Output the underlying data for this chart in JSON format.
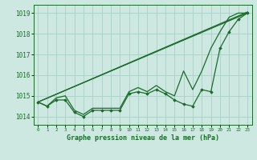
{
  "title": "Graphe pression niveau de la mer (hPa)",
  "background_color": "#cce8e0",
  "grid_color": "#aad0c8",
  "line_color": "#1a6b2a",
  "xlim": [
    -0.5,
    23.5
  ],
  "ylim": [
    1013.6,
    1019.4
  ],
  "yticks": [
    1014,
    1015,
    1016,
    1017,
    1018,
    1019
  ],
  "xtick_labels": [
    "0",
    "1",
    "2",
    "3",
    "4",
    "5",
    "6",
    "7",
    "8",
    "9",
    "10",
    "11",
    "12",
    "13",
    "14",
    "15",
    "16",
    "17",
    "18",
    "19",
    "20",
    "21",
    "22",
    "23"
  ],
  "line1_x": [
    0,
    1,
    2,
    3,
    4,
    5,
    6,
    7,
    8,
    9,
    10,
    11,
    12,
    13,
    14,
    15,
    16,
    17,
    18,
    19,
    20,
    21,
    22,
    23
  ],
  "line1_y": [
    1014.7,
    1014.5,
    1014.8,
    1014.8,
    1014.2,
    1014.0,
    1014.3,
    1014.3,
    1014.3,
    1014.3,
    1015.1,
    1015.2,
    1015.1,
    1015.3,
    1015.1,
    1014.8,
    1014.6,
    1014.5,
    1015.3,
    1015.2,
    1017.3,
    1018.1,
    1018.7,
    1019.0
  ],
  "line2_x": [
    0,
    1,
    2,
    3,
    4,
    5,
    6,
    7,
    8,
    9,
    10,
    11,
    12,
    13,
    14,
    15,
    16,
    17,
    18,
    19,
    20,
    21,
    22,
    23
  ],
  "line2_y": [
    1014.7,
    1014.5,
    1014.9,
    1015.0,
    1014.3,
    1014.1,
    1014.4,
    1014.4,
    1014.4,
    1014.4,
    1015.2,
    1015.4,
    1015.2,
    1015.5,
    1015.2,
    1015.0,
    1016.2,
    1015.3,
    1016.2,
    1017.3,
    1018.1,
    1018.8,
    1019.0,
    1019.0
  ],
  "line3_x": [
    0,
    23
  ],
  "line3_y": [
    1014.7,
    1019.0
  ],
  "line4_x": [
    0,
    23
  ],
  "line4_y": [
    1014.7,
    1019.05
  ]
}
